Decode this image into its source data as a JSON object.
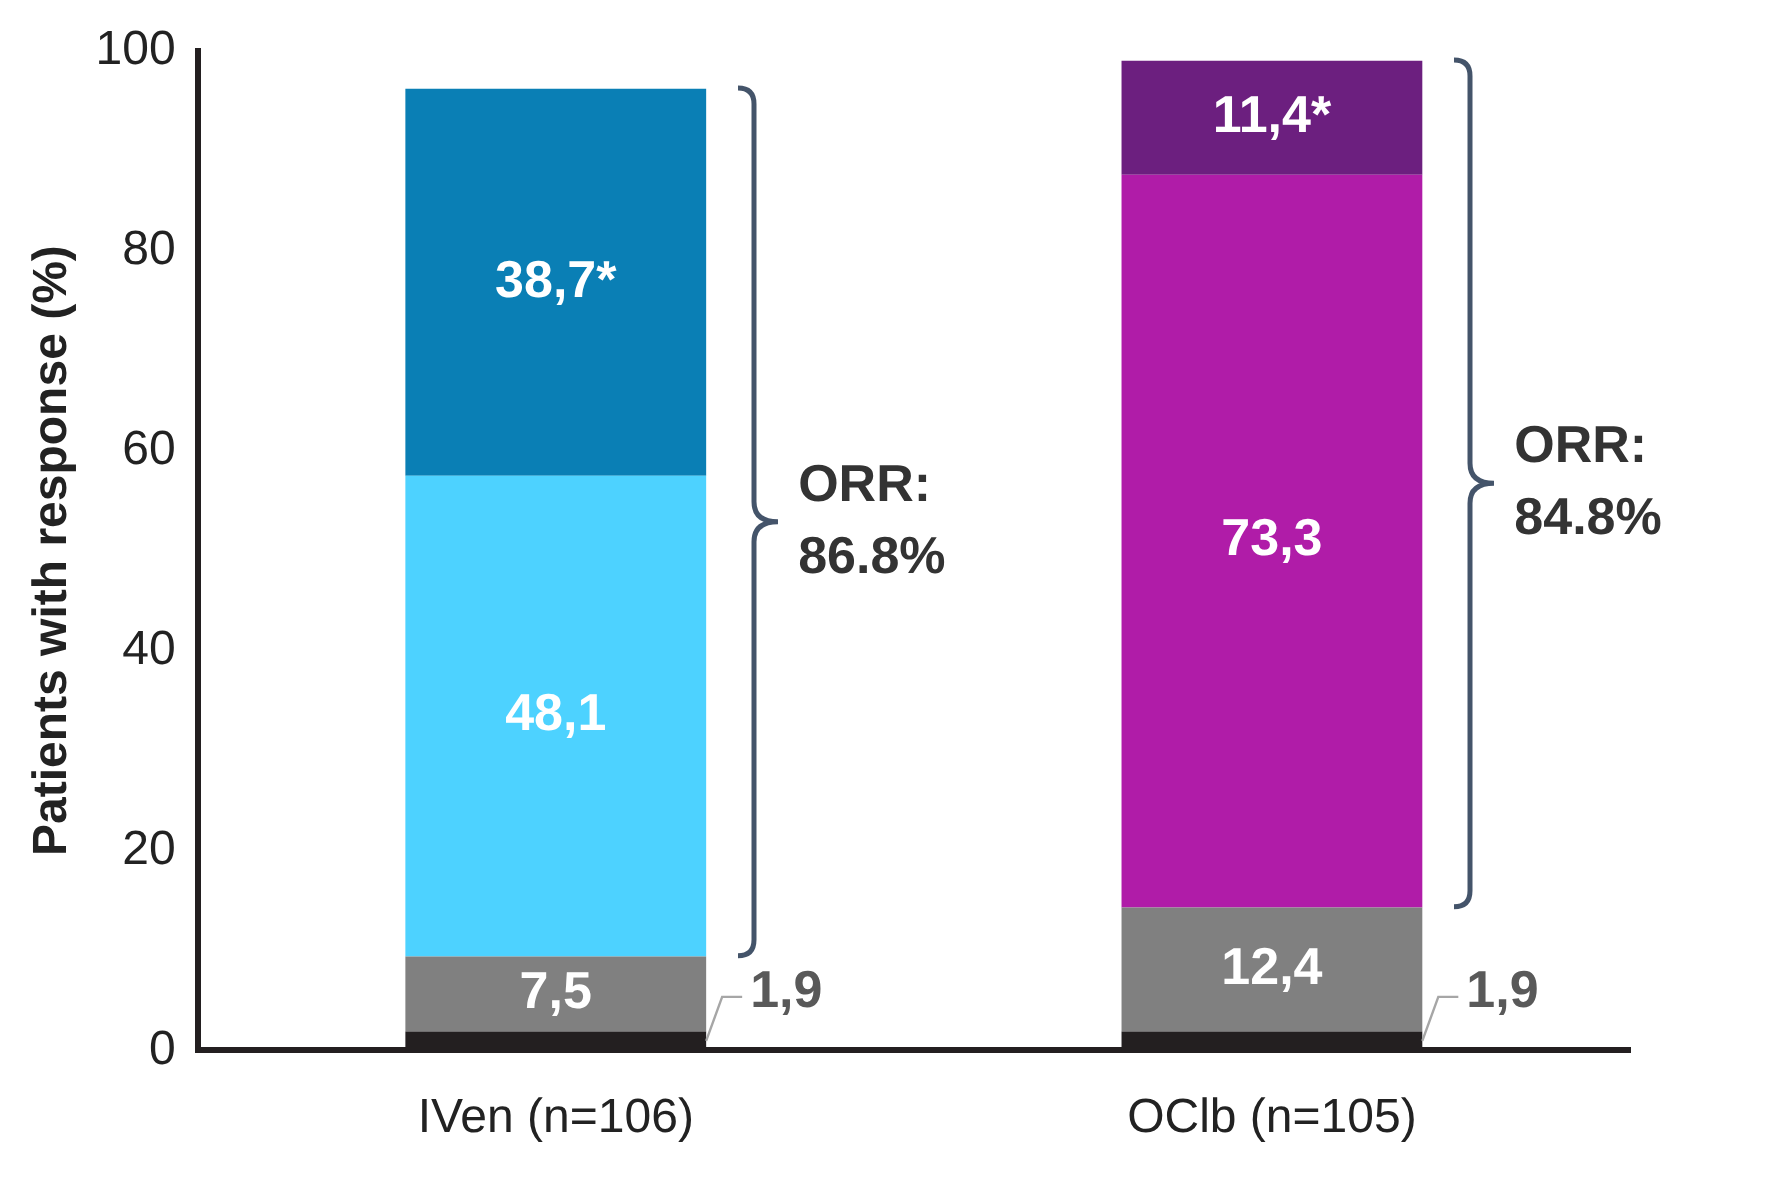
{
  "chart_data": {
    "type": "bar",
    "stacked": true,
    "ylabel": "Patients with response (%)",
    "categories": [
      "IVen (n=106)",
      "OClb (n=105)"
    ],
    "series": [
      {
        "colors": [
          "#231f20",
          "#231f20"
        ],
        "values": [
          1.9,
          1.9
        ],
        "value_labels": [
          "1,9",
          "1,9"
        ]
      },
      {
        "colors": [
          "#808080",
          "#808080"
        ],
        "values": [
          7.5,
          12.4
        ],
        "value_labels": [
          "7,5",
          "12,4"
        ]
      },
      {
        "colors": [
          "#4dd2ff",
          "#b01ca8"
        ],
        "values": [
          48.1,
          73.3
        ],
        "value_labels": [
          "48,1",
          "73,3"
        ]
      },
      {
        "colors": [
          "#0a7fb5",
          "#6c1f7f"
        ],
        "values": [
          38.7,
          11.4
        ],
        "value_labels": [
          "38,7*",
          "11,4*"
        ]
      }
    ],
    "annotations": [
      "ORR:\n86.8%",
      "ORR:\n84.8%"
    ],
    "ylim": [
      0,
      100
    ],
    "yticks": [
      0,
      20,
      40,
      60,
      80,
      100
    ],
    "grid": false,
    "legend": false
  }
}
